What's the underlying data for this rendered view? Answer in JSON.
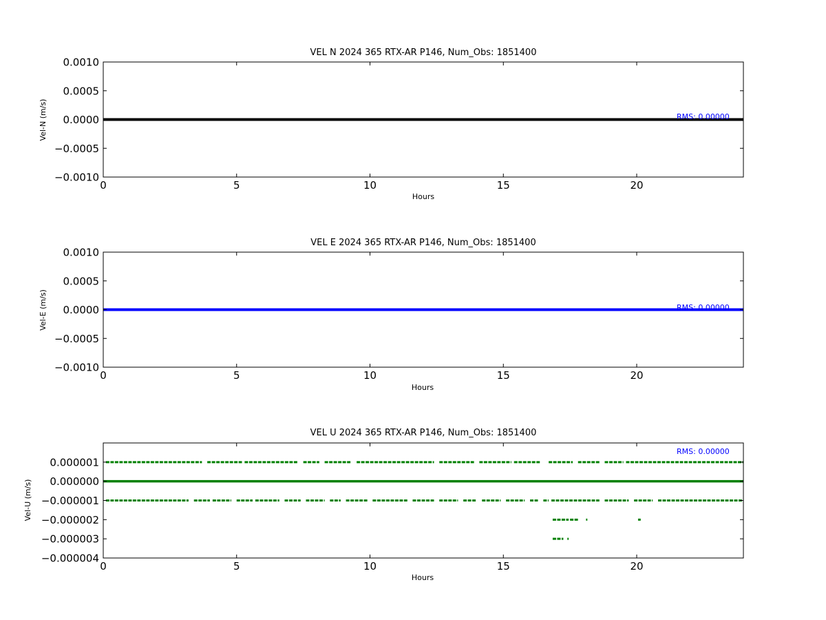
{
  "chart_data": [
    {
      "type": "line",
      "title": "VEL N 2024 365 RTX-AR  P146, Num_Obs: 1851400",
      "xlabel": "Hours",
      "ylabel": "Vel-N (m/s)",
      "xlim": [
        0,
        24
      ],
      "ylim": [
        -0.001,
        0.001
      ],
      "xticks": [
        0,
        5,
        10,
        15,
        20
      ],
      "xtick_labels": [
        "0",
        "5",
        "10",
        "15",
        "20"
      ],
      "yticks": [
        -0.001,
        -0.0005,
        0,
        0.0005,
        0.001
      ],
      "ytick_labels": [
        "−0.0010",
        "−0.0005",
        "0.0000",
        "0.0005",
        "0.0010"
      ],
      "grid": false,
      "annotation": "RMS:  0.00000",
      "annotation_color": "#0000ff",
      "series": [
        {
          "color": "#000000",
          "style": "dense-dots",
          "segments": [
            {
              "y": 0,
              "x": [
                [
                  0,
                  24
                ]
              ]
            }
          ]
        }
      ]
    },
    {
      "type": "line",
      "title": "VEL E 2024 365 RTX-AR  P146, Num_Obs: 1851400",
      "xlabel": "Hours",
      "ylabel": "Vel-E (m/s)",
      "xlim": [
        0,
        24
      ],
      "ylim": [
        -0.001,
        0.001
      ],
      "xticks": [
        0,
        5,
        10,
        15,
        20
      ],
      "xtick_labels": [
        "0",
        "5",
        "10",
        "15",
        "20"
      ],
      "yticks": [
        -0.001,
        -0.0005,
        0,
        0.0005,
        0.001
      ],
      "ytick_labels": [
        "−0.0010",
        "−0.0005",
        "0.0000",
        "0.0005",
        "0.0010"
      ],
      "grid": false,
      "annotation": "RMS:  0.00000",
      "annotation_color": "#0000ff",
      "series": [
        {
          "color": "#0000ff",
          "style": "dense-dots",
          "segments": [
            {
              "y": 0,
              "x": [
                [
                  0,
                  24
                ]
              ]
            }
          ]
        }
      ]
    },
    {
      "type": "scatter",
      "title": "VEL U 2024 365 RTX-AR  P146, Num_Obs: 1851400",
      "xlabel": "Hours",
      "ylabel": "Vel-U (m/s)",
      "xlim": [
        0,
        24
      ],
      "ylim": [
        -4e-06,
        2e-06
      ],
      "xticks": [
        0,
        5,
        10,
        15,
        20
      ],
      "xtick_labels": [
        "0",
        "5",
        "10",
        "15",
        "20"
      ],
      "yticks": [
        1e-06,
        0,
        -1e-06,
        -2e-06,
        -3e-06,
        -4e-06
      ],
      "ytick_labels": [
        "0.000001",
        "0.000000",
        "−0.000001",
        "−0.000002",
        "−0.000003",
        "−0.000004"
      ],
      "grid": false,
      "annotation": "RMS:  0.00000",
      "annotation_color": "#0000ff",
      "series": [
        {
          "color": "#008000",
          "style": "dots",
          "segments": [
            {
              "y": 1e-06,
              "x": [
                [
                  0.1,
                  3.7
                ],
                [
                  3.9,
                  5.2
                ],
                [
                  5.3,
                  7.3
                ],
                [
                  7.5,
                  8.1
                ],
                [
                  8.3,
                  9.3
                ],
                [
                  9.5,
                  12.4
                ],
                [
                  12.6,
                  13.9
                ],
                [
                  14.1,
                  15.3
                ],
                [
                  15.4,
                  16.4
                ],
                [
                  16.7,
                  17.6
                ],
                [
                  17.8,
                  18.6
                ],
                [
                  18.8,
                  19.5
                ],
                [
                  19.6,
                  24
                ]
              ]
            },
            {
              "y": 0,
              "x": [
                [
                  0,
                  24
                ]
              ]
            },
            {
              "y": -1e-06,
              "x": [
                [
                  0.1,
                  3.2
                ],
                [
                  3.4,
                  4.0
                ],
                [
                  4.1,
                  4.8
                ],
                [
                  5.0,
                  5.6
                ],
                [
                  5.7,
                  6.6
                ],
                [
                  6.8,
                  7.4
                ],
                [
                  7.6,
                  8.3
                ],
                [
                  8.5,
                  8.9
                ],
                [
                  9.1,
                  9.9
                ],
                [
                  10.1,
                  11.4
                ],
                [
                  11.6,
                  12.4
                ],
                [
                  12.6,
                  13.3
                ],
                [
                  13.5,
                  14.0
                ],
                [
                  14.2,
                  14.9
                ],
                [
                  15.1,
                  15.8
                ],
                [
                  16.0,
                  16.3
                ],
                [
                  16.5,
                  16.7
                ],
                [
                  16.8,
                  18.6
                ],
                [
                  18.8,
                  19.7
                ],
                [
                  19.9,
                  20.6
                ],
                [
                  20.8,
                  24
                ]
              ]
            },
            {
              "y": -2e-06,
              "x": [
                [
                  16.85,
                  17.45
                ],
                [
                  17.5,
                  17.8
                ],
                [
                  18.1,
                  18.15
                ],
                [
                  20.05,
                  20.15
                ]
              ]
            },
            {
              "y": -3e-06,
              "x": [
                [
                  16.85,
                  17.25
                ],
                [
                  17.4,
                  17.45
                ]
              ]
            }
          ]
        }
      ]
    }
  ]
}
